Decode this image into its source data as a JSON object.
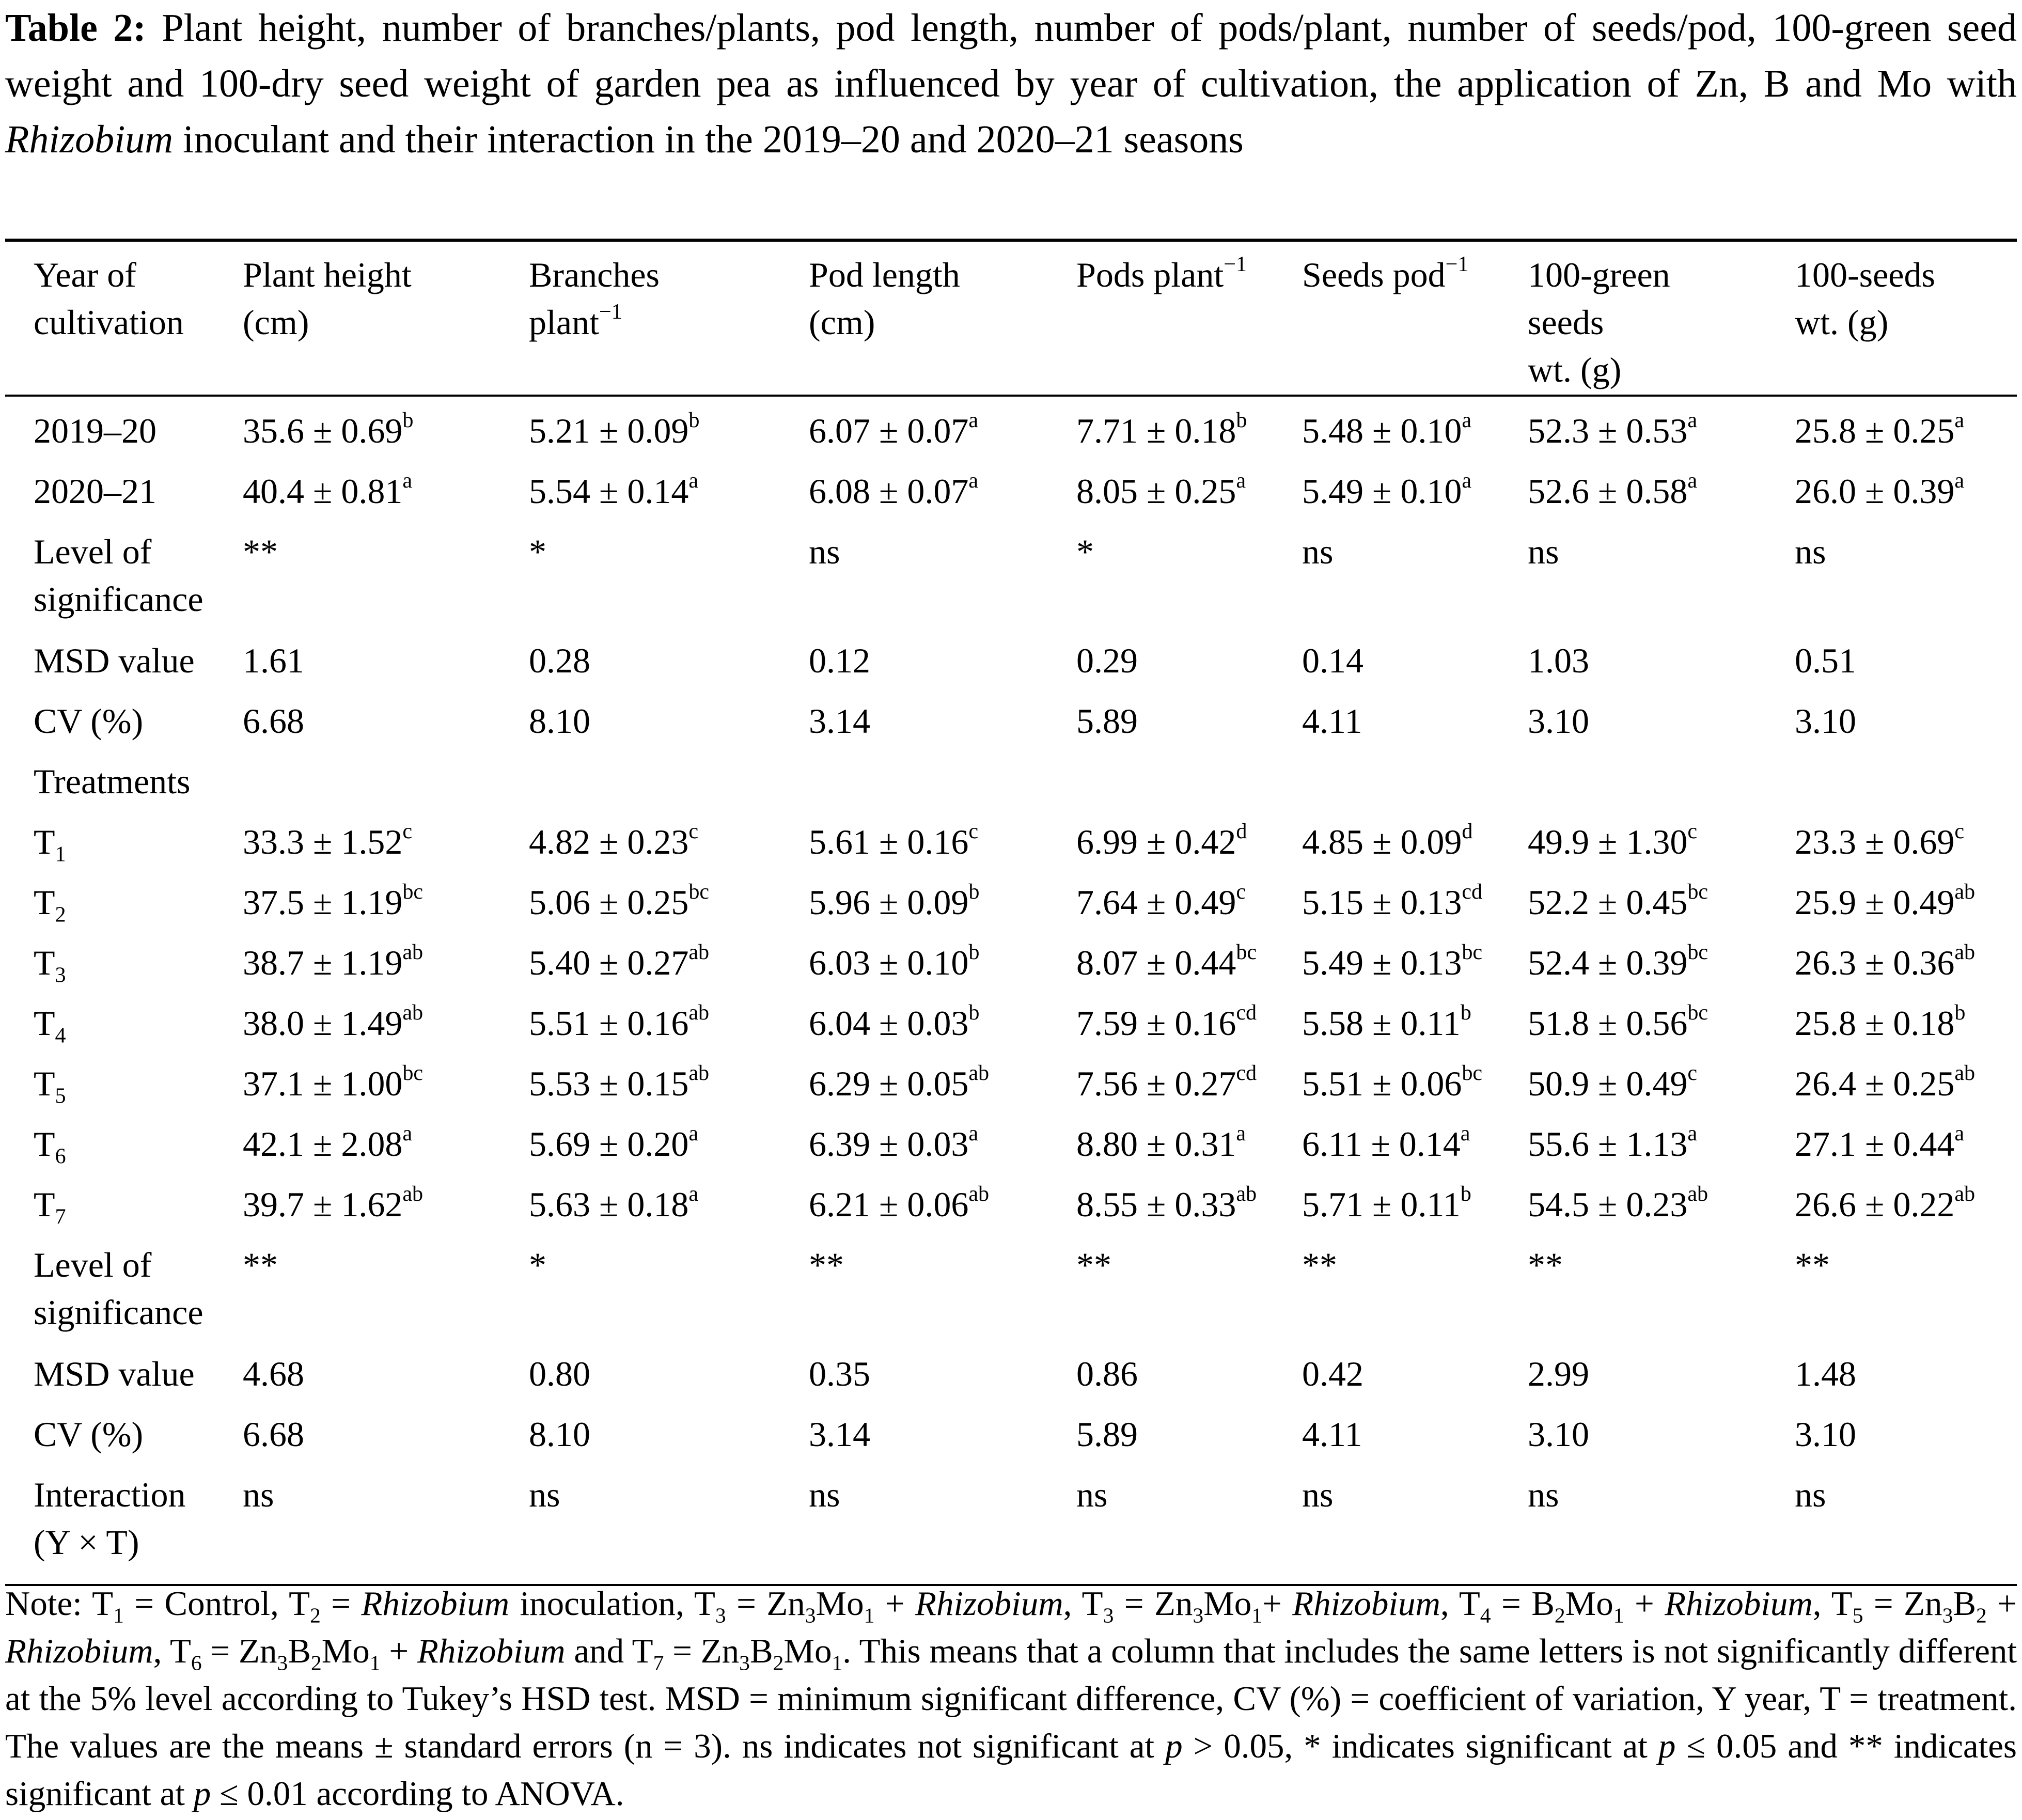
{
  "caption": {
    "label": "Table 2:",
    "text_1": " Plant height, number of branches/plants, pod length, number of pods/plant, number of seeds/pod, 100-green seed weight and 100-dry seed weight of garden pea as influenced by year of cultivation, the application of Zn, B and Mo with ",
    "italic": "Rhizobium",
    "text_2": " inoculant and their interaction in the 2019–20 and 2020–21 seasons"
  },
  "table": {
    "headers": [
      [
        "Year of",
        "cultivation"
      ],
      [
        "Plant height",
        "(cm)"
      ],
      [
        "Branches",
        "plant"
      ],
      [
        "Pod length",
        "(cm)"
      ],
      [
        "Pods plant"
      ],
      [
        "Seeds pod"
      ],
      [
        "100-green",
        "seeds",
        "wt. (g)"
      ],
      [
        "100-seeds",
        "wt. (g)"
      ]
    ],
    "header_exp": "−1",
    "rows": [
      {
        "label": [
          "2019–20"
        ],
        "cells": [
          [
            "35.6 ± 0.69",
            "b"
          ],
          [
            "5.21 ± 0.09",
            "b"
          ],
          [
            "6.07 ± 0.07",
            "a"
          ],
          [
            "7.71 ± 0.18",
            "b"
          ],
          [
            "5.48 ± 0.10",
            "a"
          ],
          [
            "52.3 ± 0.53",
            "a"
          ],
          [
            "25.8 ± 0.25",
            "a"
          ]
        ]
      },
      {
        "label": [
          "2020–21"
        ],
        "cells": [
          [
            "40.4 ± 0.81",
            "a"
          ],
          [
            "5.54 ± 0.14",
            "a"
          ],
          [
            "6.08 ± 0.07",
            "a"
          ],
          [
            "8.05 ± 0.25",
            "a"
          ],
          [
            "5.49 ± 0.10",
            "a"
          ],
          [
            "52.6 ± 0.58",
            "a"
          ],
          [
            "26.0 ± 0.39",
            "a"
          ]
        ]
      },
      {
        "label": [
          "Level of",
          "significance"
        ],
        "cells": [
          [
            "**",
            ""
          ],
          [
            "*",
            ""
          ],
          [
            "ns",
            ""
          ],
          [
            "*",
            ""
          ],
          [
            "ns",
            ""
          ],
          [
            "ns",
            ""
          ],
          [
            "ns",
            ""
          ]
        ]
      },
      {
        "label": [
          "MSD value"
        ],
        "cells": [
          [
            "1.61",
            ""
          ],
          [
            "0.28",
            ""
          ],
          [
            "0.12",
            ""
          ],
          [
            "0.29",
            ""
          ],
          [
            "0.14",
            ""
          ],
          [
            "1.03",
            ""
          ],
          [
            "0.51",
            ""
          ]
        ]
      },
      {
        "label": [
          "CV (%)"
        ],
        "cells": [
          [
            "6.68",
            ""
          ],
          [
            "8.10",
            ""
          ],
          [
            "3.14",
            ""
          ],
          [
            "5.89",
            ""
          ],
          [
            "4.11",
            ""
          ],
          [
            "3.10",
            ""
          ],
          [
            "3.10",
            ""
          ]
        ]
      },
      {
        "label": [
          "Treatments"
        ],
        "cells": []
      },
      {
        "label": [
          "T",
          "1"
        ],
        "cells": [
          [
            "33.3 ± 1.52",
            "c"
          ],
          [
            "4.82 ± 0.23",
            "c"
          ],
          [
            "5.61 ± 0.16",
            "c"
          ],
          [
            "6.99 ± 0.42",
            "d"
          ],
          [
            "4.85 ± 0.09",
            "d"
          ],
          [
            "49.9 ± 1.30",
            "c"
          ],
          [
            "23.3 ± 0.69",
            "c"
          ]
        ]
      },
      {
        "label": [
          "T",
          "2"
        ],
        "cells": [
          [
            "37.5 ± 1.19",
            "bc"
          ],
          [
            "5.06 ± 0.25",
            "bc"
          ],
          [
            "5.96 ± 0.09",
            "b"
          ],
          [
            "7.64 ± 0.49",
            "c"
          ],
          [
            "5.15 ± 0.13",
            "cd"
          ],
          [
            "52.2 ± 0.45",
            "bc"
          ],
          [
            "25.9 ± 0.49",
            "ab"
          ]
        ]
      },
      {
        "label": [
          "T",
          "3"
        ],
        "cells": [
          [
            "38.7 ± 1.19",
            "ab"
          ],
          [
            "5.40 ± 0.27",
            "ab"
          ],
          [
            "6.03 ± 0.10",
            "b"
          ],
          [
            "8.07 ± 0.44",
            "bc"
          ],
          [
            "5.49 ± 0.13",
            "bc"
          ],
          [
            "52.4 ± 0.39",
            "bc"
          ],
          [
            "26.3 ± 0.36",
            "ab"
          ]
        ]
      },
      {
        "label": [
          "T",
          "4"
        ],
        "cells": [
          [
            "38.0 ± 1.49",
            "ab"
          ],
          [
            "5.51 ± 0.16",
            "ab"
          ],
          [
            "6.04 ± 0.03",
            "b"
          ],
          [
            "7.59 ± 0.16",
            "cd"
          ],
          [
            "5.58 ± 0.11",
            "b"
          ],
          [
            "51.8 ± 0.56",
            "bc"
          ],
          [
            "25.8 ± 0.18",
            "b"
          ]
        ]
      },
      {
        "label": [
          "T",
          "5"
        ],
        "cells": [
          [
            "37.1 ± 1.00",
            "bc"
          ],
          [
            "5.53 ± 0.15",
            "ab"
          ],
          [
            "6.29 ± 0.05",
            "ab"
          ],
          [
            "7.56 ± 0.27",
            "cd"
          ],
          [
            "5.51 ± 0.06",
            "bc"
          ],
          [
            "50.9 ± 0.49",
            "c"
          ],
          [
            "26.4 ± 0.25",
            "ab"
          ]
        ]
      },
      {
        "label": [
          "T",
          "6"
        ],
        "cells": [
          [
            "42.1 ± 2.08",
            "a"
          ],
          [
            "5.69 ± 0.20",
            "a"
          ],
          [
            "6.39 ± 0.03",
            "a"
          ],
          [
            "8.80 ± 0.31",
            "a"
          ],
          [
            "6.11 ± 0.14",
            "a"
          ],
          [
            "55.6 ± 1.13",
            "a"
          ],
          [
            "27.1 ± 0.44",
            "a"
          ]
        ]
      },
      {
        "label": [
          "T",
          "7"
        ],
        "cells": [
          [
            "39.7 ± 1.62",
            "ab"
          ],
          [
            "5.63 ± 0.18",
            "a"
          ],
          [
            "6.21 ± 0.06",
            "ab"
          ],
          [
            "8.55 ± 0.33",
            "ab"
          ],
          [
            "5.71 ± 0.11",
            "b"
          ],
          [
            "54.5 ± 0.23",
            "ab"
          ],
          [
            "26.6 ± 0.22",
            "ab"
          ]
        ]
      },
      {
        "label": [
          "Level of",
          "significance"
        ],
        "cells": [
          [
            "**",
            ""
          ],
          [
            "*",
            ""
          ],
          [
            "**",
            ""
          ],
          [
            "**",
            ""
          ],
          [
            "**",
            ""
          ],
          [
            "**",
            ""
          ],
          [
            "**",
            ""
          ]
        ]
      },
      {
        "label": [
          "MSD value"
        ],
        "cells": [
          [
            "4.68",
            ""
          ],
          [
            "0.80",
            ""
          ],
          [
            "0.35",
            ""
          ],
          [
            "0.86",
            ""
          ],
          [
            "0.42",
            ""
          ],
          [
            "2.99",
            ""
          ],
          [
            "1.48",
            ""
          ]
        ]
      },
      {
        "label": [
          "CV (%)"
        ],
        "cells": [
          [
            "6.68",
            ""
          ],
          [
            "8.10",
            ""
          ],
          [
            "3.14",
            ""
          ],
          [
            "5.89",
            ""
          ],
          [
            "4.11",
            ""
          ],
          [
            "3.10",
            ""
          ],
          [
            "3.10",
            ""
          ]
        ]
      },
      {
        "label": [
          "Interaction",
          "(Y × T)"
        ],
        "cells": [
          [
            "ns",
            ""
          ],
          [
            "ns",
            ""
          ],
          [
            "ns",
            ""
          ],
          [
            "ns",
            ""
          ],
          [
            "ns",
            ""
          ],
          [
            "ns",
            ""
          ],
          [
            "ns",
            ""
          ]
        ]
      }
    ]
  },
  "note": [
    [
      "t",
      "Note: T"
    ],
    [
      "sub",
      "1"
    ],
    [
      "t",
      " = Control, T"
    ],
    [
      "sub",
      "2"
    ],
    [
      "t",
      " = "
    ],
    [
      "i",
      "Rhizobium"
    ],
    [
      "t",
      " inoculation, T"
    ],
    [
      "sub",
      "3"
    ],
    [
      "t",
      " = Zn"
    ],
    [
      "sub",
      "3"
    ],
    [
      "t",
      "Mo"
    ],
    [
      "sub",
      "1"
    ],
    [
      "t",
      " + "
    ],
    [
      "i",
      "Rhizobium"
    ],
    [
      "t",
      ", T"
    ],
    [
      "sub",
      "3"
    ],
    [
      "t",
      " = Zn"
    ],
    [
      "sub",
      "3"
    ],
    [
      "t",
      "Mo"
    ],
    [
      "sub",
      "1"
    ],
    [
      "t",
      "+ "
    ],
    [
      "i",
      "Rhizobium"
    ],
    [
      "t",
      ", T"
    ],
    [
      "sub",
      "4"
    ],
    [
      "t",
      " = B"
    ],
    [
      "sub",
      "2"
    ],
    [
      "t",
      "Mo"
    ],
    [
      "sub",
      "1"
    ],
    [
      "t",
      " + "
    ],
    [
      "i",
      "Rhizobium"
    ],
    [
      "t",
      ", T"
    ],
    [
      "sub",
      "5"
    ],
    [
      "t",
      " = Zn"
    ],
    [
      "sub",
      "3"
    ],
    [
      "t",
      "B"
    ],
    [
      "sub",
      "2"
    ],
    [
      "t",
      " + "
    ],
    [
      "i",
      "Rhizobium"
    ],
    [
      "t",
      ", T"
    ],
    [
      "sub",
      "6"
    ],
    [
      "t",
      " = Zn"
    ],
    [
      "sub",
      "3"
    ],
    [
      "t",
      "B"
    ],
    [
      "sub",
      "2"
    ],
    [
      "t",
      "Mo"
    ],
    [
      "sub",
      "1"
    ],
    [
      "t",
      " + "
    ],
    [
      "i",
      "Rhizobium"
    ],
    [
      "t",
      " and T"
    ],
    [
      "sub",
      "7"
    ],
    [
      "t",
      " = Zn"
    ],
    [
      "sub",
      "3"
    ],
    [
      "t",
      "B"
    ],
    [
      "sub",
      "2"
    ],
    [
      "t",
      "Mo"
    ],
    [
      "sub",
      "1"
    ],
    [
      "t",
      ". This means that a column that includes the same letters is not significantly different at the 5% level according to Tukey’s HSD test. MSD = minimum significant difference, CV (%) = coefficient of variation, Y year, T = treatment. The values are the means ± standard errors (n = 3). ns indicates not significant at "
    ],
    [
      "i",
      "p"
    ],
    [
      "t",
      " > 0.05, * indicates significant at "
    ],
    [
      "i",
      "p"
    ],
    [
      "t",
      " ≤ 0.05 and ** indicates significant at "
    ],
    [
      "i",
      "p"
    ],
    [
      "t",
      " ≤ 0.01 according to ANOVA."
    ]
  ]
}
